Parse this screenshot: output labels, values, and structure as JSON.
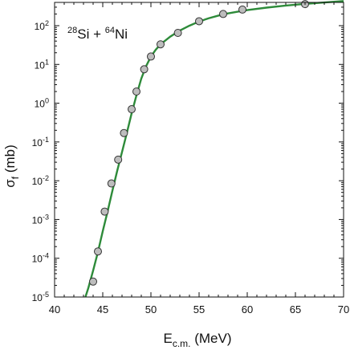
{
  "chart_data": {
    "type": "scatter",
    "annotation": {
      "a1": "28",
      "e1": "Si",
      "plus": " + ",
      "a2": "64",
      "e2": "Ni"
    },
    "xlabel": {
      "main": "E",
      "sub": "c.m.",
      "unit": " (MeV)"
    },
    "ylabel": {
      "main": "σ",
      "sub": "f",
      "unit": " (mb)"
    },
    "xlim": [
      40,
      70
    ],
    "ylim_log10": [
      -5,
      2.6
    ],
    "y_scale": "log",
    "x_ticks": [
      "40",
      "45",
      "50",
      "55",
      "60",
      "65",
      "70"
    ],
    "y_ticks": [
      {
        "base": "10",
        "exp": "2"
      },
      {
        "base": "10",
        "exp": "1"
      },
      {
        "base": "10",
        "exp": "0"
      },
      {
        "base": "10",
        "exp": "-1"
      },
      {
        "base": "10",
        "exp": "-2"
      },
      {
        "base": "10",
        "exp": "-3"
      },
      {
        "base": "10",
        "exp": "-4"
      },
      {
        "base": "10",
        "exp": "-5"
      }
    ],
    "series": [
      {
        "kind": "points",
        "color": "#bdbdbd",
        "edge": "#333333",
        "x": [
          44.0,
          44.5,
          45.2,
          45.9,
          46.6,
          47.2,
          48.0,
          48.5,
          49.3,
          50.0,
          51.0,
          52.8,
          55.0,
          57.5,
          59.5,
          66.0
        ],
        "y": [
          2.5e-05,
          0.00015,
          0.0016,
          0.0085,
          0.035,
          0.17,
          0.7,
          2.0,
          7.5,
          16,
          33,
          65,
          130,
          200,
          260,
          360
        ]
      },
      {
        "kind": "curve",
        "color": "#2e8b3a",
        "x": [
          43.2,
          43.5,
          44.0,
          44.5,
          45.0,
          45.5,
          46.0,
          46.5,
          47.0,
          47.5,
          48.0,
          48.5,
          49.0,
          49.5,
          50.0,
          50.5,
          51.0,
          52.0,
          53.0,
          54.0,
          55.0,
          56.0,
          57.0,
          58.0,
          59.0,
          60.0,
          62.0,
          64.0,
          66.0,
          68.0,
          70.0
        ],
        "y": [
          1e-05,
          1.7e-05,
          4.8e-05,
          0.000145,
          0.0005,
          0.0016,
          0.0055,
          0.018,
          0.055,
          0.17,
          0.55,
          1.6,
          4.3,
          9.0,
          16,
          24,
          33,
          52,
          75,
          100,
          128,
          155,
          182,
          207,
          230,
          252,
          292,
          330,
          365,
          398,
          430
        ]
      }
    ]
  }
}
